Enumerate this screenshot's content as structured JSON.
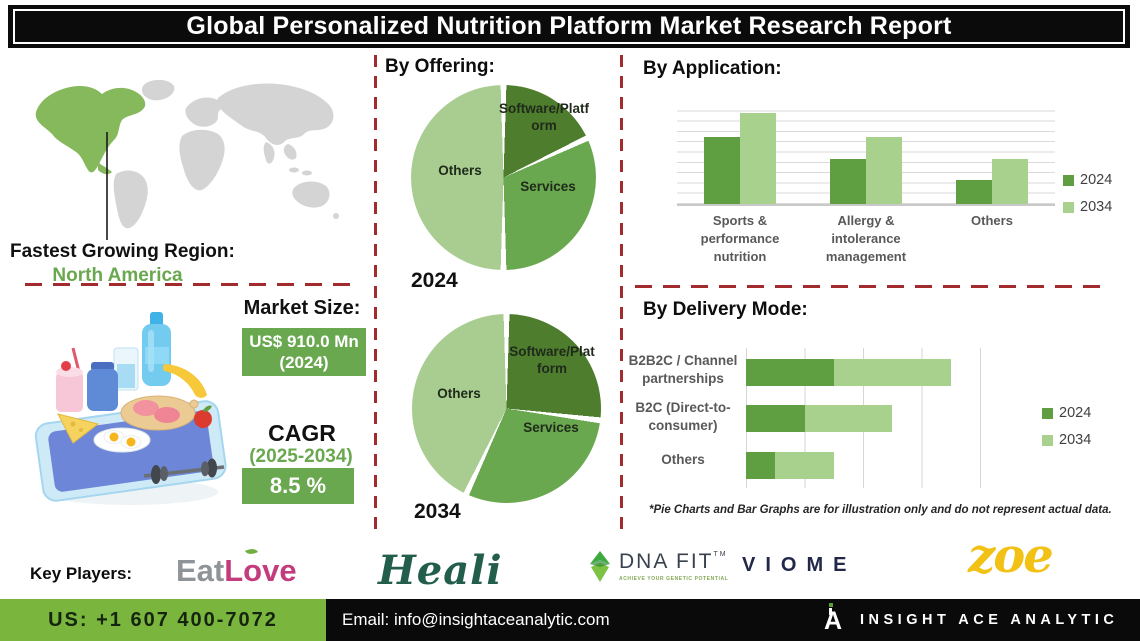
{
  "title": "Global Personalized Nutrition Platform Market Research Report",
  "left": {
    "region_label": "Fastest Growing Region:",
    "region_value": "North America",
    "market_size_label": "Market Size:",
    "market_size_value": "US$ 910.0 Mn (2024)",
    "cagr_label": "CAGR",
    "cagr_period": "(2025-2034)",
    "cagr_value": "8.5 %"
  },
  "sections": {
    "offering_heading": "By Offering:",
    "offering_year_1": "2024",
    "offering_year_2": "2034",
    "application_heading": "By Application:",
    "delivery_heading": "By Delivery Mode:",
    "disclaimer": "*Pie Charts and Bar Graphs are for illustration only and do not represent actual data."
  },
  "icons": {
    "world_map": "world-map-illustration (North America highlighted green)",
    "nutrition_tray": "tablet-tray-with-food-and-dumbbell-illustration",
    "eatlove_leaf": "leaf-icon",
    "dnafit_mark": "green-gem-arrow-icon",
    "insight_ace_mark": "stylized-A-with-green-dot-icon"
  },
  "chart_data": [
    {
      "id": "offering_2024",
      "type": "pie",
      "title": "By Offering: 2024",
      "labels": [
        "Software/Platform",
        "Services",
        "Others"
      ],
      "values": [
        18,
        32,
        50
      ],
      "colors": [
        "#4e7d2e",
        "#6aa84f",
        "#a9cd90"
      ],
      "unit": "% share (illustrative)"
    },
    {
      "id": "offering_2034",
      "type": "pie",
      "title": "By Offering: 2034",
      "labels": [
        "Software/Platform",
        "Services",
        "Others"
      ],
      "values": [
        27,
        30,
        43
      ],
      "colors": [
        "#4e7d2e",
        "#6aa84f",
        "#a9cd90"
      ],
      "unit": "% share (illustrative)"
    },
    {
      "id": "by_application",
      "type": "bar",
      "title": "By Application:",
      "categories": [
        "Sports & performance nutrition",
        "Allergy & intolerance management",
        "Others"
      ],
      "series": [
        {
          "name": "2024",
          "color": "#5f9e41",
          "values": [
            6.5,
            4.4,
            2.3
          ]
        },
        {
          "name": "2034",
          "color": "#a9d18e",
          "values": [
            8.8,
            6.5,
            4.4
          ]
        }
      ],
      "ylim": [
        0,
        10
      ],
      "grid": true,
      "legend_position": "right",
      "unit": "relative units (illustrative)"
    },
    {
      "id": "by_delivery_mode",
      "type": "stacked-horizontal-bar",
      "title": "By Delivery Mode:",
      "categories": [
        "B2B2C / Channel partnerships",
        "B2C (Direct-to-consumer)",
        "Others"
      ],
      "series": [
        {
          "name": "2024",
          "color": "#5f9e41",
          "values": [
            1.5,
            1.0,
            0.5
          ]
        },
        {
          "name": "2034",
          "color": "#a9d18e",
          "values": [
            2.0,
            1.5,
            1.0
          ]
        }
      ],
      "xlim": [
        0,
        4
      ],
      "grid": true,
      "legend_position": "right",
      "unit": "relative units (illustrative)"
    }
  ],
  "key_players": {
    "label": "Key Players:",
    "eatlove_part1": "Eat",
    "eatlove_part2": "Love",
    "heali": "Heali",
    "dnafit": "DNA FIT",
    "dnafit_tm": "TM",
    "dnafit_tagline": "ACHIEVE YOUR GENETIC POTENTIAL",
    "viome": "VIOME",
    "zoe": "zoe"
  },
  "footer": {
    "phone": "US: +1 607 400-7072",
    "email": "Email: info@insightaceanalytic.com",
    "brand_letter": "A",
    "brand_name": "INSIGHT ACE ANALYTIC"
  },
  "colors": {
    "pie_dark_green": "#4e7d2e",
    "pie_medium_green": "#6aa84f",
    "pie_light_green": "#a9cd90",
    "bar_2024": "#5f9e41",
    "bar_2034": "#a9d18e",
    "box_green": "#6aa850",
    "footer_green": "#7ab63e",
    "divider_red": "#a22b2d",
    "map_region_green": "#85b95c"
  }
}
